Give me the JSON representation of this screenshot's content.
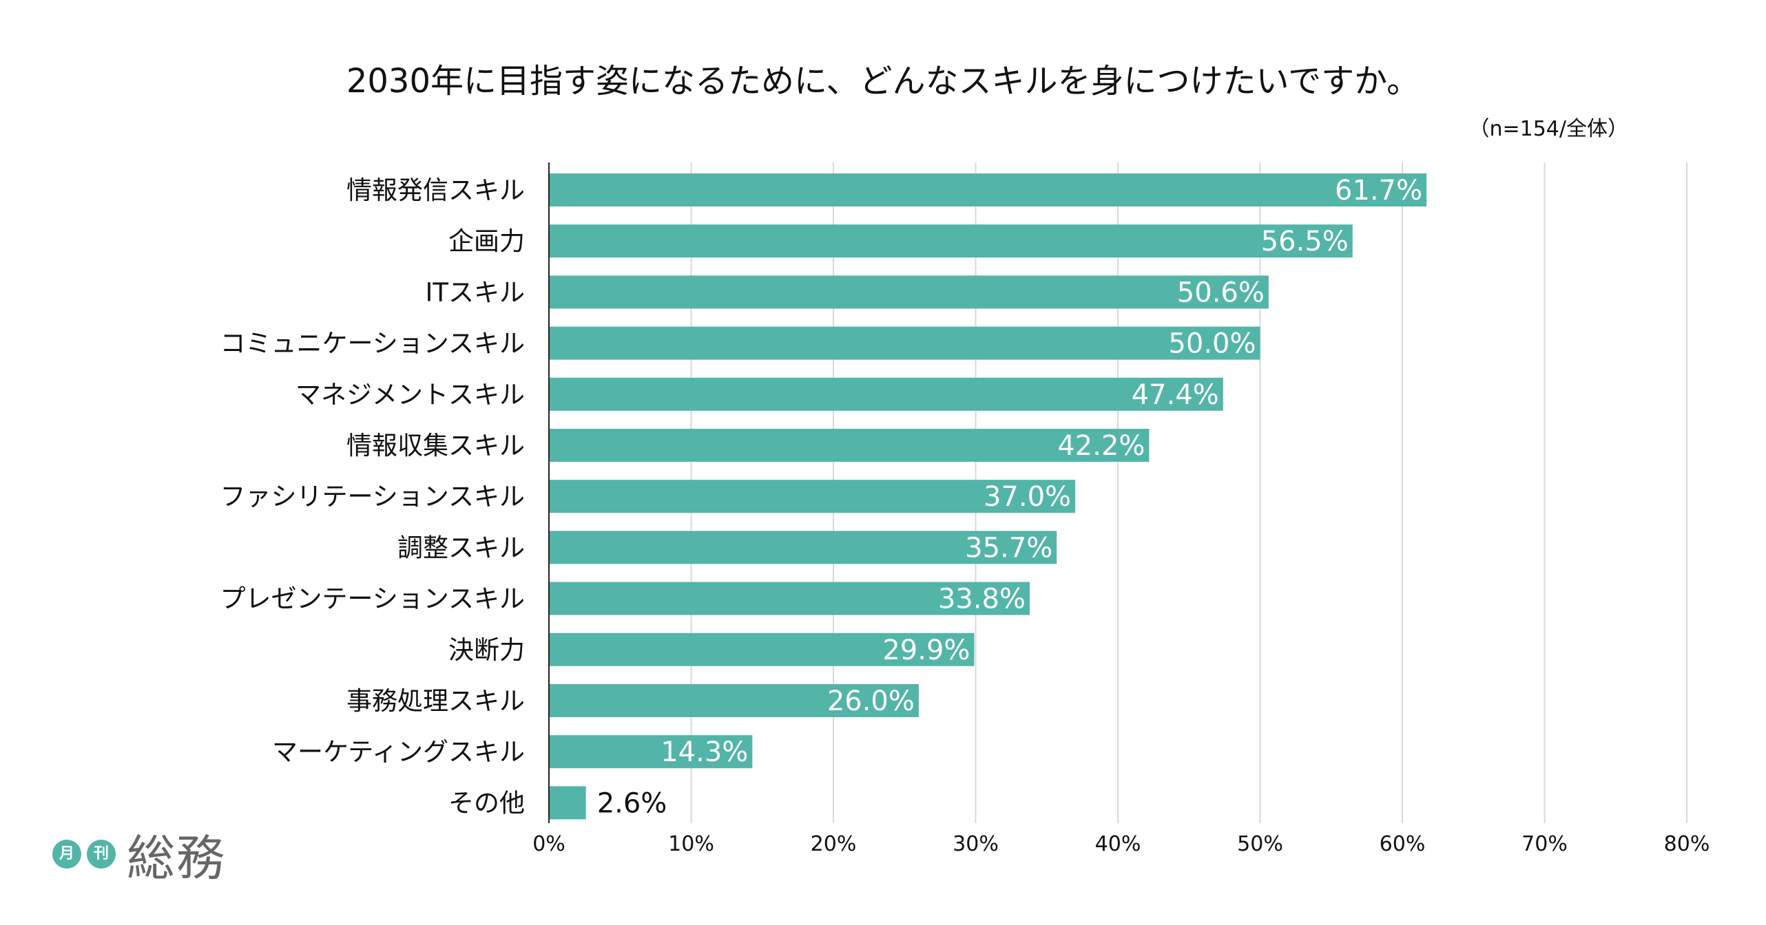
{
  "chart_data": {
    "type": "bar",
    "orientation": "horizontal",
    "title": "2030年に目指す姿になるために、どんなスキルを身につけたいですか。",
    "note": "（n=154/全体）",
    "categories": [
      "情報発信スキル",
      "企画力",
      "ITスキル",
      "コミュニケーションスキル",
      "マネジメントスキル",
      "情報収集スキル",
      "ファシリテーションスキル",
      "調整スキル",
      "プレゼンテーションスキル",
      "決断力",
      "事務処理スキル",
      "マーケティングスキル",
      "その他"
    ],
    "values": [
      61.7,
      56.5,
      50.6,
      50.0,
      47.4,
      42.2,
      37.0,
      35.7,
      33.8,
      29.9,
      26.0,
      14.3,
      2.6
    ],
    "value_labels": [
      "61.7%",
      "56.5%",
      "50.6%",
      "50.0%",
      "47.4%",
      "42.2%",
      "37.0%",
      "35.7%",
      "33.8%",
      "29.9%",
      "26.0%",
      "14.3%",
      "2.6%"
    ],
    "xlim": [
      0,
      80
    ],
    "x_ticks": [
      0,
      10,
      20,
      30,
      40,
      50,
      60,
      70,
      80
    ],
    "x_tick_labels": [
      "0%",
      "10%",
      "20%",
      "30%",
      "40%",
      "50%",
      "60%",
      "70%",
      "80%"
    ],
    "grid": true,
    "bar_color": "#52b5a8",
    "label_color_inside": "#ffffff",
    "label_color_outside": "#111111",
    "grid_color": "#d9d9d9"
  },
  "logo": {
    "badge1": "月",
    "badge2": "刊",
    "name": "総務"
  }
}
